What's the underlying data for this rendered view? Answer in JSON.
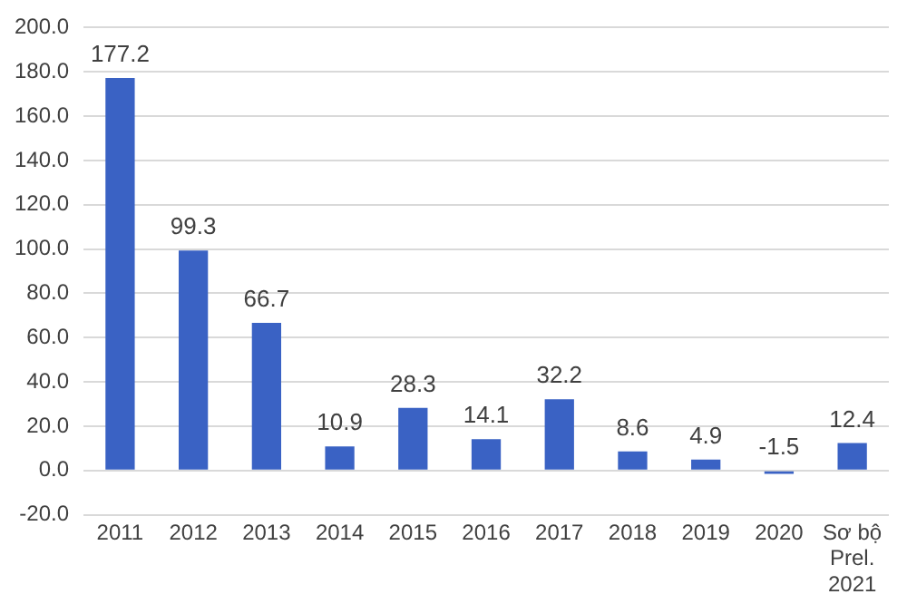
{
  "chart_data": {
    "type": "bar",
    "categories": [
      "2011",
      "2012",
      "2013",
      "2014",
      "2015",
      "2016",
      "2017",
      "2018",
      "2019",
      "2020",
      "Sơ bộ\nPrel.\n2021"
    ],
    "values": [
      177.2,
      99.3,
      66.7,
      10.9,
      28.3,
      14.1,
      32.2,
      8.6,
      4.9,
      -1.5,
      12.4
    ],
    "color": "#3a62c4",
    "ylim": [
      -20,
      200
    ],
    "yticks": [
      {
        "value": -20,
        "label": "-20.0"
      },
      {
        "value": 0,
        "label": "0.0"
      },
      {
        "value": 20,
        "label": "20.0"
      },
      {
        "value": 40,
        "label": "40.0"
      },
      {
        "value": 60,
        "label": "60.0"
      },
      {
        "value": 80,
        "label": "80.0"
      },
      {
        "value": 100,
        "label": "100.0"
      },
      {
        "value": 120,
        "label": "120.0"
      },
      {
        "value": 140,
        "label": "140.0"
      },
      {
        "value": 160,
        "label": "160.0"
      },
      {
        "value": 180,
        "label": "180.0"
      },
      {
        "value": 200,
        "label": "200.0"
      }
    ],
    "grid": "y",
    "data_labels": true,
    "legend": false
  }
}
